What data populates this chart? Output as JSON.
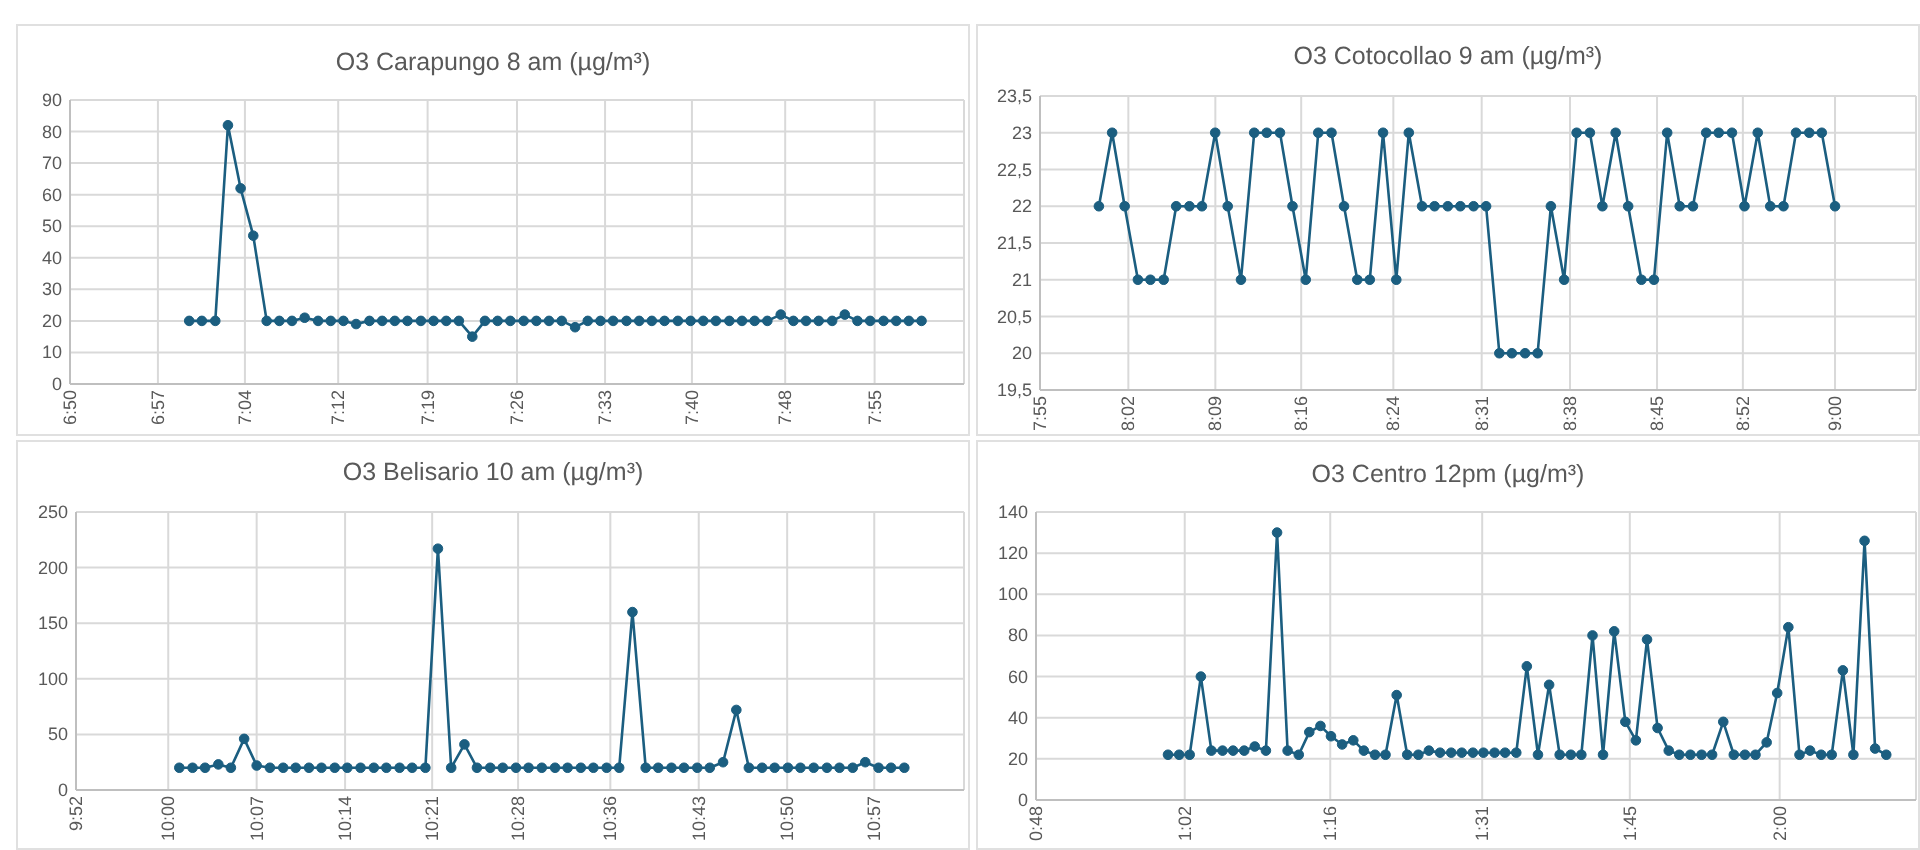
{
  "chart_data": [
    {
      "type": "line",
      "title": "O3 Carapungo 8 am (µg/m³)",
      "color": "#1b5e80",
      "marker": "circle",
      "grid": true,
      "xlim": [
        6.84,
        8.04
      ],
      "xticks": [
        {
          "value": 6.84,
          "label": "6:50"
        },
        {
          "value": 6.958,
          "label": "6:57"
        },
        {
          "value": 7.0748,
          "label": "7:04"
        },
        {
          "value": 7.2,
          "label": "7:12"
        },
        {
          "value": 7.32,
          "label": "7:19"
        },
        {
          "value": 7.44,
          "label": "7:26"
        },
        {
          "value": 7.5582,
          "label": "7:33"
        },
        {
          "value": 7.6748,
          "label": "7:40"
        },
        {
          "value": 7.8,
          "label": "7:48"
        },
        {
          "value": 7.92,
          "label": "7:55"
        }
      ],
      "ylim": [
        0,
        90
      ],
      "yticks": [
        0,
        10,
        20,
        30,
        40,
        50,
        60,
        70,
        80,
        90
      ],
      "x": [
        7.0,
        7.017,
        7.035,
        7.052,
        7.069,
        7.086,
        7.104,
        7.121,
        7.138,
        7.155,
        7.173,
        7.19,
        7.207,
        7.224,
        7.242,
        7.259,
        7.276,
        7.293,
        7.311,
        7.328,
        7.345,
        7.362,
        7.38,
        7.397,
        7.414,
        7.431,
        7.449,
        7.466,
        7.483,
        7.5,
        7.518,
        7.535,
        7.552,
        7.569,
        7.587,
        7.604,
        7.621,
        7.638,
        7.656,
        7.673,
        7.69,
        7.707,
        7.725,
        7.742,
        7.759,
        7.776,
        7.794,
        7.811,
        7.828,
        7.845,
        7.863,
        7.88,
        7.897,
        7.914,
        7.932,
        7.949,
        7.966,
        7.983
      ],
      "values": [
        20,
        20,
        20,
        82,
        62,
        47,
        20,
        20,
        20,
        21,
        20,
        20,
        20,
        19,
        20,
        20,
        20,
        20,
        20,
        20,
        20,
        20,
        15,
        20,
        20,
        20,
        20,
        20,
        20,
        20,
        18,
        20,
        20,
        20,
        20,
        20,
        20,
        20,
        20,
        20,
        20,
        20,
        20,
        20,
        20,
        20,
        22,
        20,
        20,
        20,
        20,
        22,
        20,
        20,
        20,
        20,
        20,
        20
      ]
    },
    {
      "type": "line",
      "title": "O3 Cotocollao 9 am (µg/m³)",
      "color": "#1b5e80",
      "marker": "circle",
      "grid": true,
      "xlim": [
        7.92,
        9.11
      ],
      "xticks": [
        {
          "value": 7.92,
          "label": "7:55"
        },
        {
          "value": 8.04,
          "label": "8:02"
        },
        {
          "value": 8.1582,
          "label": "8:09"
        },
        {
          "value": 8.2748,
          "label": "8:16"
        },
        {
          "value": 8.4,
          "label": "8:24"
        },
        {
          "value": 8.52,
          "label": "8:31"
        },
        {
          "value": 8.64,
          "label": "8:38"
        },
        {
          "value": 8.7582,
          "label": "8:45"
        },
        {
          "value": 8.8748,
          "label": "8:52"
        },
        {
          "value": 9.0,
          "label": "9:00"
        }
      ],
      "ylim": [
        19.5,
        23.5
      ],
      "yticks": [
        {
          "value": 19.5,
          "label": "19,5"
        },
        20,
        {
          "value": 20.5,
          "label": "20,5"
        },
        21,
        {
          "value": 21.5,
          "label": "21,5"
        },
        22,
        {
          "value": 22.5,
          "label": "22,5"
        },
        23,
        {
          "value": 23.5,
          "label": "23,5"
        }
      ],
      "x": [
        8.0,
        8.018,
        8.035,
        8.053,
        8.07,
        8.088,
        8.105,
        8.123,
        8.14,
        8.158,
        8.175,
        8.193,
        8.211,
        8.228,
        8.246,
        8.263,
        8.281,
        8.298,
        8.316,
        8.333,
        8.351,
        8.368,
        8.386,
        8.404,
        8.421,
        8.439,
        8.456,
        8.474,
        8.491,
        8.509,
        8.526,
        8.544,
        8.561,
        8.579,
        8.596,
        8.614,
        8.632,
        8.649,
        8.667,
        8.684,
        8.702,
        8.719,
        8.737,
        8.754,
        8.772,
        8.789,
        8.807,
        8.825,
        8.842,
        8.86,
        8.877,
        8.895,
        8.912,
        8.93,
        8.947,
        8.965,
        8.982,
        9.0
      ],
      "values": [
        22,
        23,
        22,
        21,
        21,
        21,
        22,
        22,
        22,
        23,
        22,
        21,
        23,
        23,
        23,
        22,
        21,
        23,
        23,
        22,
        21,
        21,
        23,
        21,
        23,
        22,
        22,
        22,
        22,
        22,
        22,
        20,
        20,
        20,
        20,
        22,
        21,
        23,
        23,
        22,
        23,
        22,
        21,
        21,
        23,
        22,
        22,
        23,
        23,
        23,
        22,
        23,
        22,
        22,
        23,
        23,
        23,
        22
      ]
    },
    {
      "type": "line",
      "title": "O3 Belisario 10 am (µg/m³)",
      "color": "#1b5e80",
      "marker": "circle",
      "grid": true,
      "xlim": [
        9.8748,
        11.08
      ],
      "xticks": [
        {
          "value": 9.8748,
          "label": "9:52"
        },
        {
          "value": 10.0,
          "label": "10:00"
        },
        {
          "value": 10.12,
          "label": "10:07"
        },
        {
          "value": 10.24,
          "label": "10:14"
        },
        {
          "value": 10.3582,
          "label": "10:21"
        },
        {
          "value": 10.4748,
          "label": "10:28"
        },
        {
          "value": 10.6,
          "label": "10:36"
        },
        {
          "value": 10.72,
          "label": "10:43"
        },
        {
          "value": 10.84,
          "label": "10:50"
        },
        {
          "value": 10.9582,
          "label": "10:57"
        }
      ],
      "ylim": [
        0,
        250
      ],
      "yticks": [
        0,
        50,
        100,
        150,
        200,
        250
      ],
      "x": [
        10.015,
        10.033,
        10.05,
        10.068,
        10.085,
        10.103,
        10.12,
        10.138,
        10.156,
        10.173,
        10.191,
        10.208,
        10.226,
        10.243,
        10.261,
        10.279,
        10.296,
        10.314,
        10.331,
        10.349,
        10.366,
        10.384,
        10.402,
        10.419,
        10.437,
        10.454,
        10.472,
        10.489,
        10.507,
        10.525,
        10.542,
        10.56,
        10.577,
        10.595,
        10.612,
        10.63,
        10.648,
        10.665,
        10.683,
        10.7,
        10.718,
        10.735,
        10.753,
        10.771,
        10.788,
        10.806,
        10.823,
        10.841,
        10.858,
        10.876,
        10.894,
        10.911,
        10.929,
        10.946,
        10.964,
        10.981,
        10.999
      ],
      "values": [
        20,
        20,
        20,
        23,
        20,
        46,
        22,
        20,
        20,
        20,
        20,
        20,
        20,
        20,
        20,
        20,
        20,
        20,
        20,
        20,
        217,
        20,
        41,
        20,
        20,
        20,
        20,
        20,
        20,
        20,
        20,
        20,
        20,
        20,
        20,
        160,
        20,
        20,
        20,
        20,
        20,
        20,
        25,
        72,
        20,
        20,
        20,
        20,
        20,
        20,
        20,
        20,
        20,
        25,
        20,
        20,
        20
      ]
    },
    {
      "type": "line",
      "title": "O3 Centro 12pm (µg/m³)",
      "color": "#1b5e80",
      "marker": "circle",
      "grid": true,
      "xlim": [
        0.8,
        2.22
      ],
      "xticks": [
        {
          "value": 0.8,
          "label": "0:48"
        },
        {
          "value": 1.04,
          "label": "1:02"
        },
        {
          "value": 1.2748,
          "label": "1:16"
        },
        {
          "value": 1.52,
          "label": "1:31"
        },
        {
          "value": 1.7582,
          "label": "1:45"
        },
        {
          "value": 2.0,
          "label": "2:00"
        }
      ],
      "ylim": [
        0,
        140
      ],
      "yticks": [
        0,
        20,
        40,
        60,
        80,
        100,
        120,
        140
      ],
      "x": [
        1.013,
        1.031,
        1.048,
        1.066,
        1.083,
        1.101,
        1.118,
        1.136,
        1.153,
        1.171,
        1.189,
        1.206,
        1.224,
        1.241,
        1.259,
        1.276,
        1.294,
        1.312,
        1.329,
        1.347,
        1.364,
        1.382,
        1.399,
        1.417,
        1.434,
        1.452,
        1.47,
        1.487,
        1.505,
        1.522,
        1.54,
        1.557,
        1.575,
        1.592,
        1.61,
        1.628,
        1.645,
        1.663,
        1.68,
        1.698,
        1.715,
        1.733,
        1.751,
        1.768,
        1.786,
        1.803,
        1.821,
        1.838,
        1.856,
        1.874,
        1.891,
        1.909,
        1.926,
        1.944,
        1.961,
        1.979,
        1.996,
        2.014,
        2.032,
        2.049,
        2.067,
        2.084,
        2.102,
        2.119,
        2.137,
        2.154,
        2.172
      ],
      "values": [
        22,
        22,
        22,
        60,
        24,
        24,
        24,
        24,
        26,
        24,
        130,
        24,
        22,
        33,
        36,
        31,
        27,
        29,
        24,
        22,
        22,
        51,
        22,
        22,
        24,
        23,
        23,
        23,
        23,
        23,
        23,
        23,
        23,
        65,
        22,
        56,
        22,
        22,
        22,
        80,
        22,
        82,
        38,
        29,
        78,
        35,
        24,
        22,
        22,
        22,
        22,
        38,
        22,
        22,
        22,
        28,
        52,
        84,
        22,
        24,
        22,
        22,
        63,
        22,
        126,
        25,
        22
      ]
    }
  ]
}
